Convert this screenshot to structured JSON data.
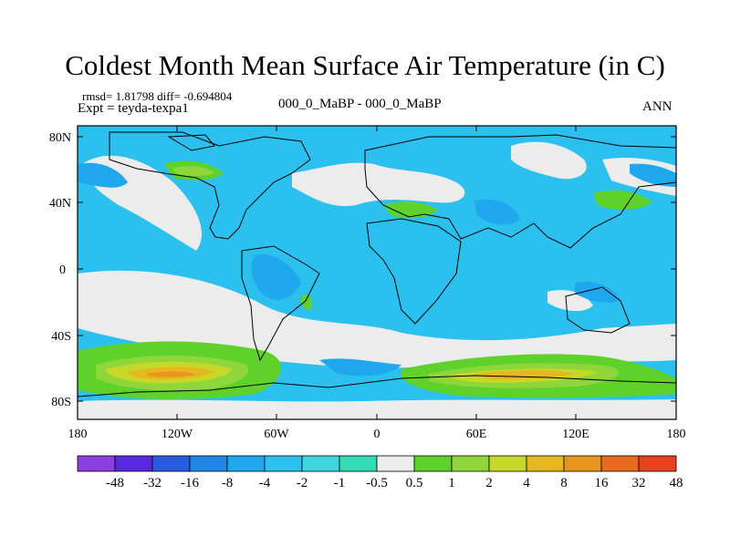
{
  "title": "Coldest Month Mean Surface Air Temperature (in C)",
  "stats_line": "rmsd= 1.81798 diff= -0.694804",
  "experiment_line": "Expt = teyda-texpa1",
  "case_line": "000_0_MaBP - 000_0_MaBP",
  "season": "ANN",
  "map": {
    "lat_ticks": [
      "80N",
      "40N",
      "0",
      "40S",
      "80S"
    ],
    "lon_ticks": [
      "180",
      "120W",
      "60W",
      "0",
      "60E",
      "120E",
      "180"
    ]
  },
  "colorbar": {
    "labels": [
      "-48",
      "-32",
      "-16",
      "-8",
      "-4",
      "-2",
      "-1",
      "-0.5",
      "0.5",
      "1",
      "2",
      "4",
      "8",
      "16",
      "32",
      "48"
    ],
    "colors": [
      "#8b3fe0",
      "#5a27e0",
      "#2a5ae0",
      "#1f86e8",
      "#1fa8ee",
      "#2cc0ee",
      "#3fd6e0",
      "#33dcb6",
      "#ececec",
      "#5ed22a",
      "#8fd63a",
      "#c6d828",
      "#e4b81e",
      "#e8951c",
      "#e86a1c",
      "#e8421c"
    ]
  }
}
